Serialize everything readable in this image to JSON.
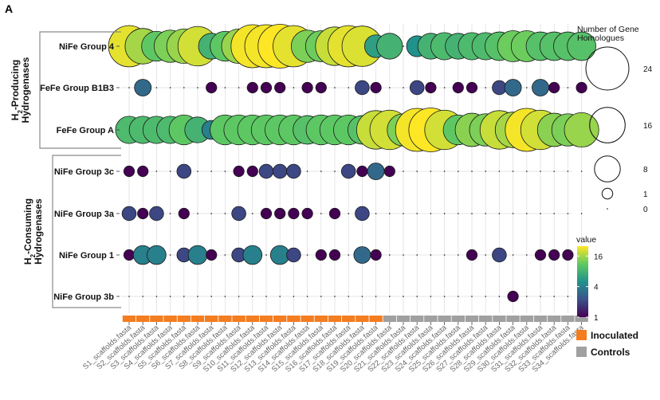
{
  "chart_data": {
    "type": "scatter",
    "panel_label": "A",
    "x": [
      "S1_scaffolds.fasta",
      "S2_scaffolds.fasta",
      "S3_scaffolds.fasta",
      "S4_scaffolds.fasta",
      "S5_scaffolds.fasta",
      "S6_scaffolds.fasta",
      "S7_scaffolds.fasta",
      "S8_scaffolds.fasta",
      "S9_scaffolds.fasta",
      "S10_scaffolds.fasta",
      "S11_scaffolds.fasta",
      "S12_scaffolds.fasta",
      "S13_scaffolds.fasta",
      "S14_scaffolds.fasta",
      "S15_scaffolds.fasta",
      "S16_scaffolds.fasta",
      "S17_scaffolds.fasta",
      "S18_scaffolds.fasta",
      "S19_scaffolds.fasta",
      "S20_scaffolds.fasta",
      "S21_scaffolds.fasta",
      "S22_scaffolds.fasta",
      "S23_scaffolds.fasta",
      "S24_scaffolds.fasta",
      "S25_scaffolds.fasta",
      "S26_scaffolds.fasta",
      "S27_scaffolds.fasta",
      "S28_scaffolds.fasta",
      "S29_scaffolds.fasta",
      "S30_scaffolds.fasta",
      "S31_scaffolds.fasta",
      "S32_scaffolds.fasta",
      "S33_scaffolds.fasta",
      "S34_scaffolds.fasta"
    ],
    "groups": [
      {
        "label": "H2-Producing Hydrogenases",
        "line1": "H",
        "sub": "2",
        "line1_rest": "-Producing",
        "line2": "Hydrogenases",
        "rows": [
          "NiFe Group 4",
          "FeFe Group B1B3",
          "FeFe Group A"
        ]
      },
      {
        "label": "H2-Consuming Hydrogenases",
        "line1": "H",
        "sub": "2",
        "line1_rest": "-Consuming",
        "line2": "Hydrogenases",
        "rows": [
          "NiFe Group 3c",
          "NiFe Group 3a",
          "NiFe Group 1",
          "NiFe Group 3b"
        ]
      }
    ],
    "series": [
      {
        "name": "NiFe Group 4",
        "values": [
          22,
          16,
          11,
          13,
          15,
          20,
          8,
          11,
          15,
          24,
          24,
          25,
          22,
          13,
          12,
          19,
          22,
          21,
          6,
          8,
          0,
          5,
          8,
          9,
          8,
          9,
          9,
          10,
          12,
          12,
          10,
          10,
          10,
          10
        ]
      },
      {
        "name": "FeFe Group B1B3",
        "values": [
          0,
          3,
          0,
          0,
          0,
          0,
          1,
          0,
          0,
          1,
          1,
          1,
          0,
          1,
          1,
          0,
          0,
          2,
          1,
          0,
          0,
          2,
          1,
          0,
          1,
          1,
          0,
          2,
          3,
          0,
          3,
          1,
          0,
          1
        ]
      },
      {
        "name": "FeFe Group A",
        "values": [
          9,
          9,
          9,
          9,
          11,
          8,
          4,
          11,
          11,
          11,
          11,
          11,
          11,
          10,
          11,
          11,
          11,
          10,
          19,
          20,
          13,
          24,
          25,
          20,
          11,
          14,
          13,
          19,
          16,
          24,
          20,
          14,
          13,
          15
        ]
      },
      {
        "name": "NiFe Group 3c",
        "values": [
          1,
          1,
          0,
          0,
          2,
          0,
          0,
          0,
          1,
          1,
          2,
          2,
          2,
          0,
          0,
          0,
          2,
          1,
          3,
          1,
          0,
          0,
          0,
          0,
          0,
          0,
          0,
          0,
          0,
          0,
          0,
          0,
          0,
          0
        ]
      },
      {
        "name": "NiFe Group 3a",
        "values": [
          2,
          1,
          2,
          0,
          1,
          0,
          0,
          0,
          2,
          0,
          1,
          1,
          1,
          1,
          0,
          1,
          0,
          2,
          0,
          0,
          0,
          0,
          0,
          0,
          0,
          0,
          0,
          0,
          0,
          0,
          0,
          0,
          0,
          0
        ]
      },
      {
        "name": "NiFe Group 1",
        "values": [
          1,
          4,
          4,
          0,
          2,
          4,
          1,
          0,
          2,
          4,
          0,
          4,
          2,
          0,
          1,
          1,
          0,
          3,
          1,
          0,
          0,
          0,
          0,
          0,
          0,
          1,
          0,
          2,
          0,
          0,
          1,
          1,
          1,
          0
        ]
      },
      {
        "name": "NiFe Group 3b",
        "values": [
          0,
          0,
          0,
          0,
          0,
          0,
          0,
          0,
          0,
          0,
          0,
          0,
          0,
          0,
          0,
          0,
          0,
          0,
          0,
          0,
          0,
          0,
          0,
          0,
          0,
          0,
          0,
          0,
          1,
          0,
          0,
          0,
          0,
          0
        ]
      }
    ],
    "size_legend": {
      "title_line1": "Number of Gene",
      "title_line2": "Homologues",
      "entries": [
        {
          "label": "24",
          "value": 24
        },
        {
          "label": "16",
          "value": 16
        },
        {
          "label": "8",
          "value": 8
        },
        {
          "label": "1",
          "value": 1
        },
        {
          "label": "0",
          "value": 0
        }
      ]
    },
    "color_legend": {
      "title": "value",
      "ticks": [
        {
          "label": "16",
          "value": 16
        },
        {
          "label": "4",
          "value": 4
        },
        {
          "label": "1",
          "value": 1
        }
      ],
      "scale": "log",
      "range": [
        1,
        25
      ],
      "colors": [
        "#440154",
        "#3b528b",
        "#21918c",
        "#5ec962",
        "#fde725"
      ]
    },
    "condition_legend": {
      "entries": [
        {
          "label": "Inoculated",
          "color": "#f47d20",
          "count": 19
        },
        {
          "label": "Controls",
          "color": "#a0a0a0",
          "count": 15
        }
      ]
    }
  }
}
